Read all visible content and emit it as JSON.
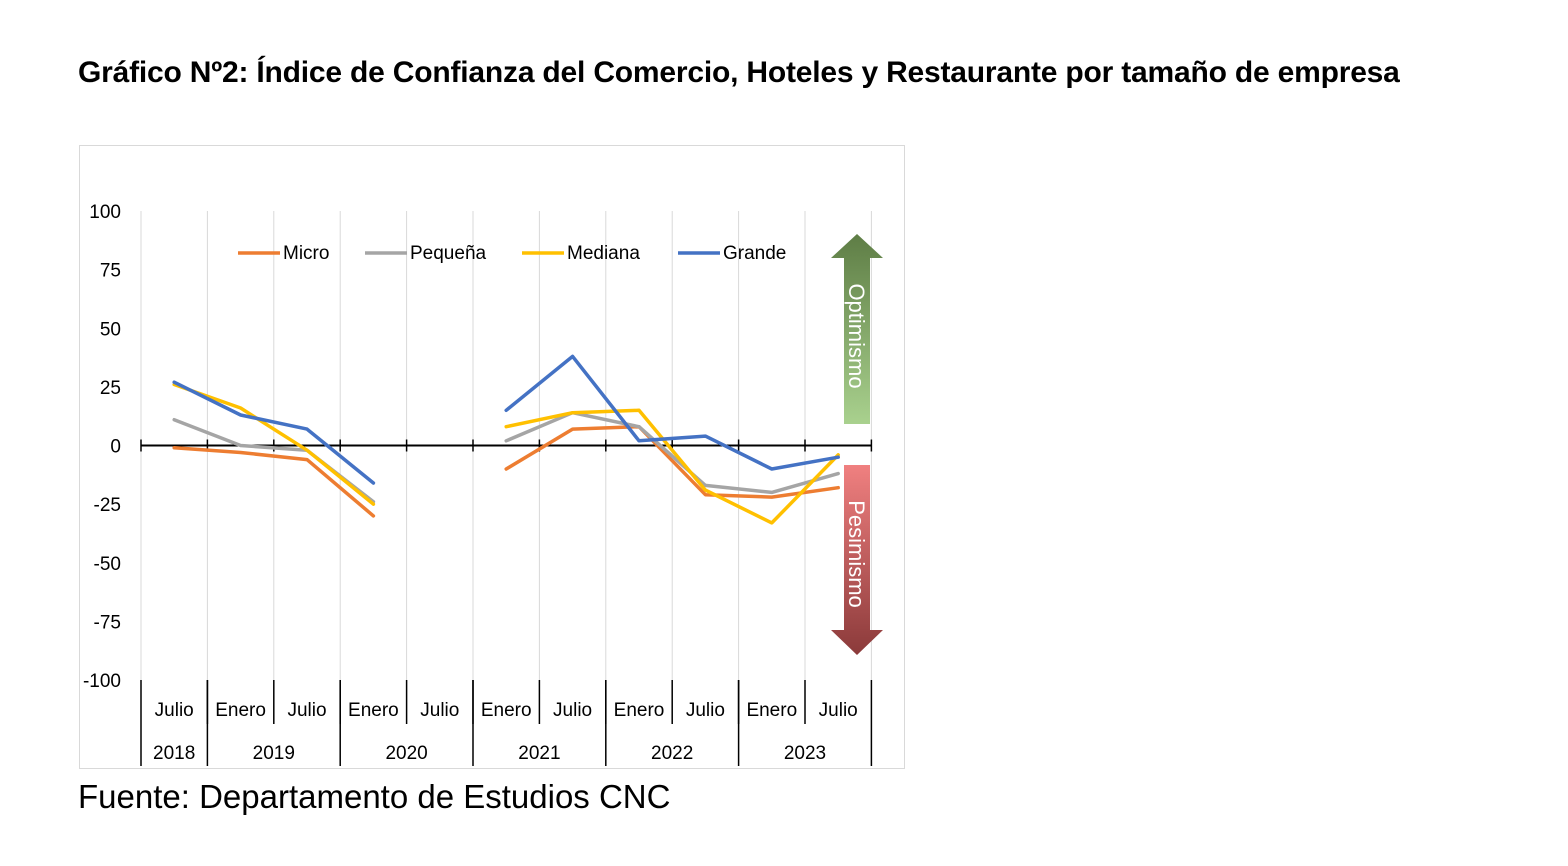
{
  "title": "Gráfico Nº2: Índice de Confianza del Comercio, Hoteles y Restaurante por tamaño de empresa",
  "source": "Fuente: Departamento de Estudios CNC",
  "chart_data": {
    "type": "line",
    "categories": [
      "Julio",
      "Enero",
      "Julio",
      "Enero",
      "Julio",
      "Enero",
      "Julio",
      "Enero",
      "Julio",
      "Enero",
      "Julio"
    ],
    "years": [
      {
        "label": "2018",
        "span": 1
      },
      {
        "label": "2019",
        "span": 2
      },
      {
        "label": "2020",
        "span": 2
      },
      {
        "label": "2021",
        "span": 2
      },
      {
        "label": "2022",
        "span": 2
      },
      {
        "label": "2023",
        "span": 2
      }
    ],
    "ylim": [
      -100,
      100
    ],
    "yticks": [
      100,
      75,
      50,
      25,
      0,
      -25,
      -50,
      -75,
      -100
    ],
    "legend_position": "top",
    "series": [
      {
        "name": "Micro",
        "color": "#ED7D31",
        "values": [
          -1,
          -3,
          -6,
          -30,
          null,
          -10,
          7,
          8,
          -21,
          -22,
          -18
        ]
      },
      {
        "name": "Pequeña",
        "color": "#A5A5A5",
        "values": [
          11,
          0,
          -2,
          -24,
          null,
          2,
          14,
          8,
          -17,
          -20,
          -12
        ]
      },
      {
        "name": "Mediana",
        "color": "#FFC000",
        "values": [
          26,
          16,
          -2,
          -25,
          null,
          8,
          14,
          15,
          -19,
          -33,
          -4
        ]
      },
      {
        "name": "Grande",
        "color": "#4472C4",
        "values": [
          27,
          13,
          7,
          -16,
          null,
          15,
          38,
          2,
          4,
          -10,
          -5
        ]
      }
    ],
    "annotations": {
      "up_label": "Optimismo",
      "down_label": "Pesimismo"
    }
  }
}
